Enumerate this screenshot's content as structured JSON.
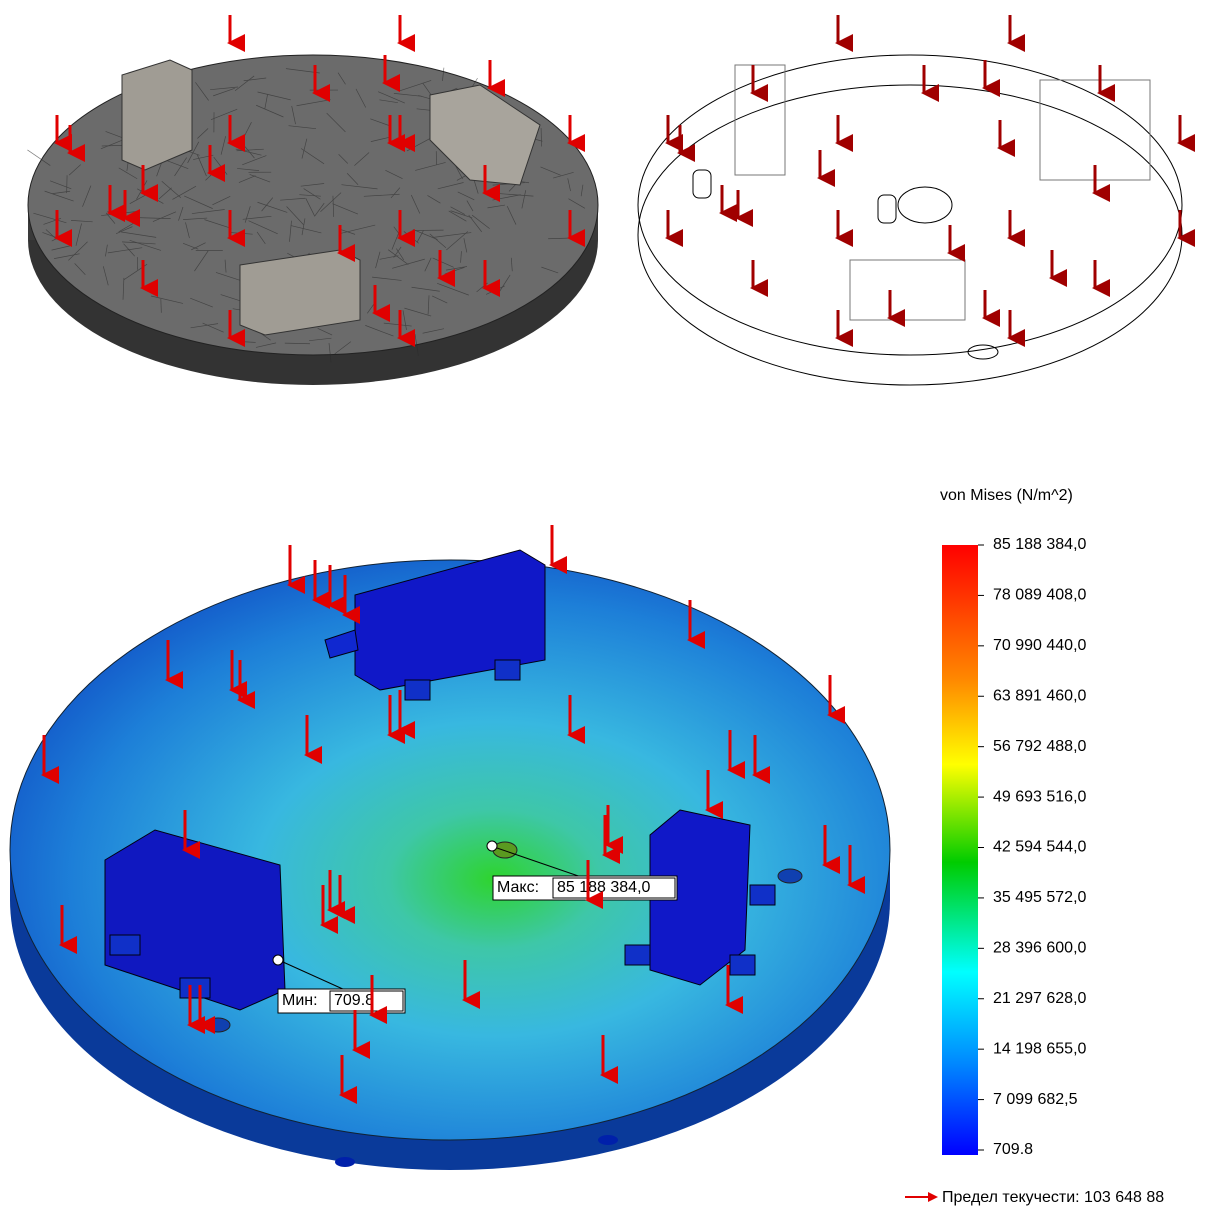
{
  "legend": {
    "title": "von Mises (N/m^2)",
    "labels": [
      "85 188 384,0",
      "78 089 408,0",
      "70 990 440,0",
      "63 891 460,0",
      "56 792 488,0",
      "49 693 516,0",
      "42 594 544,0",
      "35 495 572,0",
      "28 396 600,0",
      "21 297 628,0",
      "14 198 655,0",
      "7 099 682,5",
      "709.8"
    ]
  },
  "probes": {
    "max": {
      "label": "Макс:",
      "value": "85 188 384,0"
    },
    "min": {
      "label": "Мин:",
      "value": "709.8"
    }
  },
  "yield": "Предел текучести: 103 648 88"
}
